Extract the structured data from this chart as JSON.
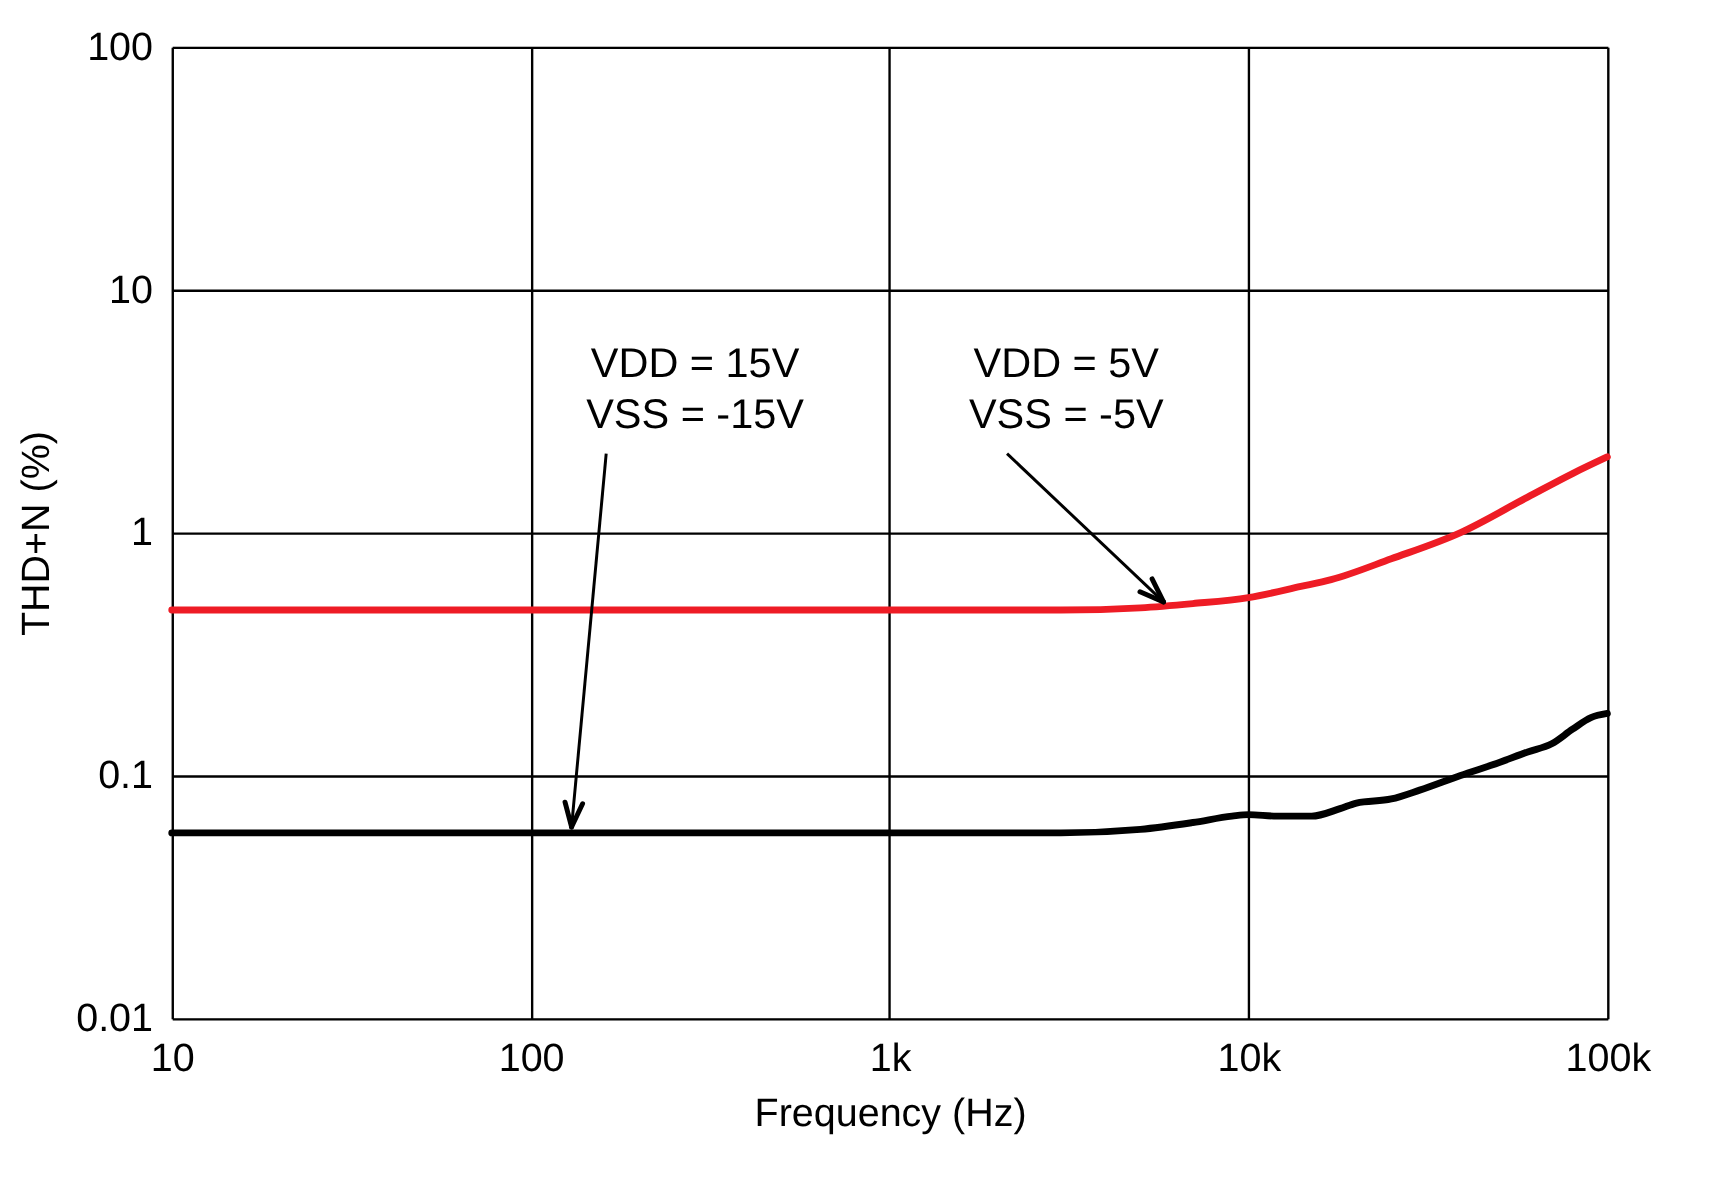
{
  "chart_data": {
    "type": "line",
    "xlabel": "Frequency (Hz)",
    "ylabel": "THD+N (%)",
    "log": "xy",
    "grid": true,
    "xlim": [
      10,
      100000
    ],
    "ylim": [
      0.01,
      100
    ],
    "xticks": [
      10,
      100,
      {
        "value": 1000,
        "label": "1k"
      },
      {
        "value": 10000,
        "label": "10k"
      },
      {
        "value": 100000,
        "label": "100k"
      }
    ],
    "yticks": [
      0.01,
      0.1,
      1,
      10,
      100
    ],
    "series": [
      {
        "color": "#ee1c25",
        "x": [
          10,
          100,
          1000,
          3000,
          5000,
          7000,
          10000,
          14000,
          17000,
          25000,
          39000,
          60000,
          80000,
          100000
        ],
        "values": [
          0.48,
          0.48,
          0.48,
          0.48,
          0.49,
          0.51,
          0.54,
          0.6,
          0.64,
          0.78,
          1.0,
          1.4,
          1.75,
          2.05
        ]
      },
      {
        "color": "#000000",
        "x": [
          10,
          100,
          1000,
          3000,
          5000,
          7000,
          9000,
          10000,
          12000,
          15000,
          18000,
          20000,
          25000,
          30000,
          39000,
          50000,
          60000,
          70000,
          80000,
          90000,
          100000
        ],
        "values": [
          0.058,
          0.058,
          0.058,
          0.058,
          0.06,
          0.064,
          0.068,
          0.069,
          0.068,
          0.068,
          0.073,
          0.077,
          0.08,
          0.087,
          0.1,
          0.113,
          0.125,
          0.135,
          0.155,
          0.173,
          0.18
        ]
      }
    ],
    "annotations": [
      {
        "text": "VDD = 15V\nVSS = -15V",
        "x": 130,
        "y": 0.058
      },
      {
        "text": "VDD = 5V\nVSS = -5V",
        "x": 5800,
        "y": 0.49
      }
    ]
  }
}
